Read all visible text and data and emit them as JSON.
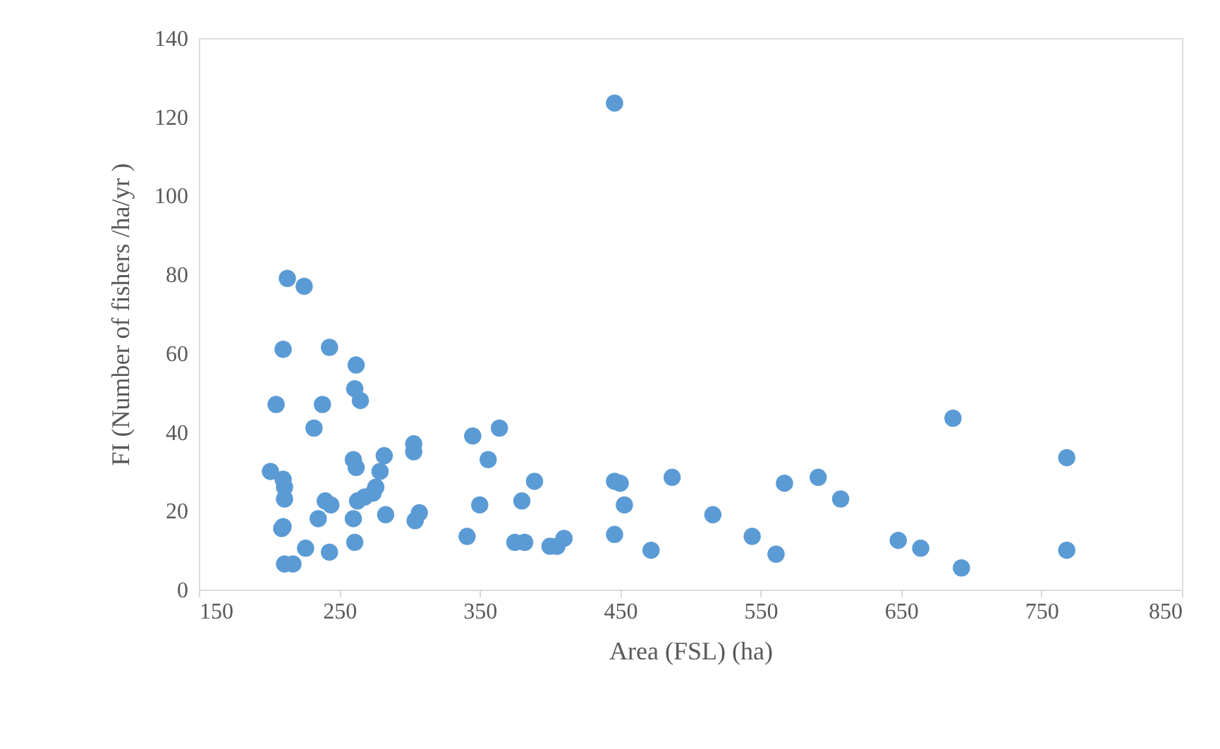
{
  "chart_data": {
    "type": "scatter",
    "xlabel": "Area (FSL) (ha)",
    "ylabel": "FI (Number of fishers /ha/yr )",
    "x": [
      201,
      205,
      210,
      213,
      225,
      210,
      211,
      211,
      210,
      209,
      211,
      217,
      226,
      232,
      235,
      238,
      240,
      243,
      244,
      243,
      260,
      261,
      262,
      262,
      265,
      260,
      261,
      263,
      268,
      274,
      276,
      279,
      282,
      283,
      303,
      303,
      304,
      307,
      341,
      345,
      350,
      356,
      364,
      375,
      380,
      382,
      389,
      400,
      405,
      410,
      446,
      450,
      446,
      453,
      472,
      487,
      516,
      544,
      561,
      567,
      591,
      607,
      648,
      664,
      687,
      693,
      768,
      768,
      446
    ],
    "series": [
      {
        "color": "#5b9bd5",
        "values": [
          30,
          47,
          61,
          79,
          77,
          28,
          26,
          23,
          16,
          15.5,
          6.5,
          6.5,
          10.5,
          41,
          18,
          47,
          22.5,
          61.5,
          21.5,
          9.5,
          33,
          51,
          57,
          31,
          48,
          18,
          12,
          22.5,
          23.5,
          24.5,
          26,
          30,
          34,
          19,
          37,
          35,
          17.5,
          19.5,
          13.5,
          39,
          21.5,
          33,
          41,
          12,
          22.5,
          12,
          27.5,
          11,
          11,
          13,
          27.5,
          27,
          14,
          21.5,
          10,
          28.5,
          19,
          13.5,
          9,
          27,
          28.5,
          23,
          12.5,
          10.5,
          43.5,
          5.5,
          33.5,
          10,
          123.5
        ]
      }
    ],
    "xlim": [
      150,
      850
    ],
    "xticks": [
      150,
      250,
      350,
      450,
      550,
      650,
      750,
      850
    ],
    "ylim": [
      0,
      140
    ],
    "yticks": [
      0,
      20,
      40,
      60,
      80,
      100,
      120,
      140
    ],
    "grid": false,
    "legend": false,
    "marker": "circle"
  }
}
